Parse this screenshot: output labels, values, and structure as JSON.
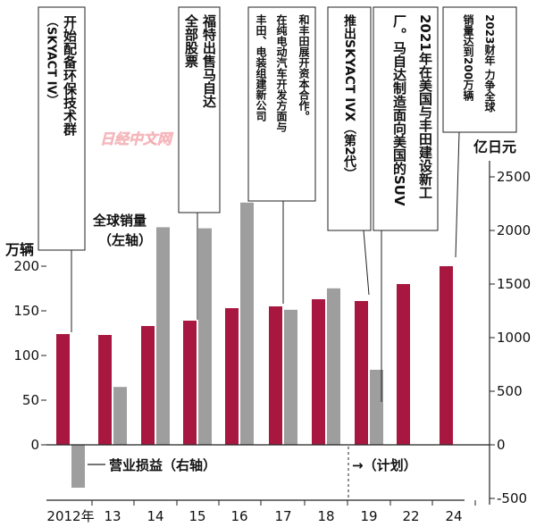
{
  "chart_data": {
    "type": "bar",
    "categories": [
      "2012年",
      "13",
      "14",
      "15",
      "16",
      "17",
      "18",
      "19",
      "22",
      "24"
    ],
    "series": [
      {
        "name": "全球销量（左轴）",
        "axis": "left",
        "unit": "万辆",
        "color": "#a8173f",
        "values": [
          124,
          123,
          133,
          139,
          153,
          155,
          163,
          161,
          180,
          200
        ]
      },
      {
        "name": "营业损益（右轴）",
        "axis": "right",
        "unit": "亿日元",
        "color": "#9e9e9e",
        "values": [
          -400,
          540,
          2030,
          2020,
          2260,
          1260,
          1460,
          700,
          null,
          null
        ]
      }
    ],
    "left_axis": {
      "unit": "万辆",
      "ticks": [
        "0",
        "50",
        "100",
        "150",
        "200"
      ],
      "range": [
        -50,
        250
      ]
    },
    "right_axis": {
      "unit": "亿日元",
      "ticks": [
        "-500",
        "0",
        "500",
        "1000",
        "1500",
        "2000",
        "2500"
      ],
      "range": [
        -500,
        2500
      ]
    },
    "plan_label": "→（计划）",
    "watermark": "日经中文网",
    "annotations": [
      {
        "category": "2012年",
        "lines": [
          "开始配备环保技术群",
          "（SKYACT IV）"
        ]
      },
      {
        "category": "15",
        "lines": [
          "福特出售马自达",
          "全部股票"
        ]
      },
      {
        "category": "17",
        "lines": [
          "和丰田展开资本合作。",
          "在纯电动汽车开发方面与",
          "丰田、电装组建新公司"
        ]
      },
      {
        "category": "19",
        "lines": [
          "推出SKYACT IVX（第2代）"
        ]
      },
      {
        "category": "19b",
        "lines": [
          "2021年在美国与丰田建设新工厂。马自达制造面向美国的SUV"
        ]
      },
      {
        "category": "24",
        "lines": [
          "2023财年 力争全球",
          "销量达到200万辆"
        ]
      }
    ]
  }
}
